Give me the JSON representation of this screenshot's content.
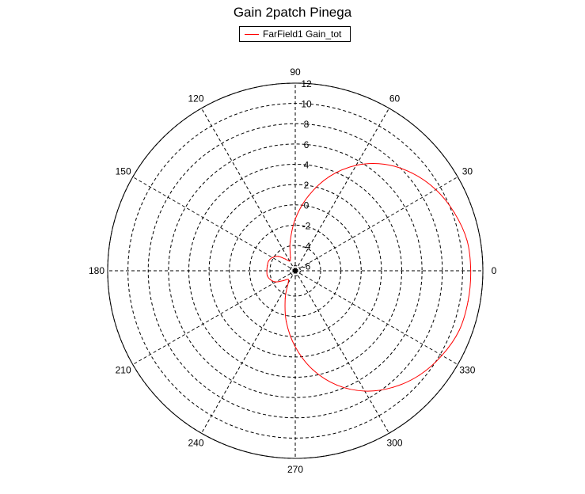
{
  "chart_data": {
    "type": "polar",
    "title": "Gain 2patch Pinega",
    "legend": {
      "placement": "top-center",
      "entries": [
        "FarField1 Gain_tot"
      ]
    },
    "angle_ticks": [
      "0",
      "30",
      "60",
      "90",
      "120",
      "150",
      "180",
      "210",
      "240",
      "270",
      "300",
      "330"
    ],
    "radial_ticks": [
      "-6",
      "-4",
      "-2",
      "0",
      "2",
      "4",
      "6",
      "8",
      "10",
      "12"
    ],
    "rlim": [
      -6.5,
      12
    ],
    "grid": true,
    "series": [
      {
        "name": "FarField1 Gain_tot",
        "color": "#ff0000",
        "angle_deg": [
          0,
          10,
          20,
          30,
          40,
          50,
          60,
          70,
          80,
          90,
          100,
          110,
          120,
          130,
          140,
          150,
          160,
          170,
          180,
          190,
          200,
          210,
          220,
          230,
          240,
          250,
          260,
          270,
          280,
          290,
          300,
          310,
          320,
          330,
          340,
          350
        ],
        "gain": [
          10.8,
          10.7,
          10.2,
          9.5,
          8.5,
          7.2,
          5.5,
          3.4,
          1.0,
          -1.4,
          -3.6,
          -5.1,
          -5.4,
          -5.0,
          -4.3,
          -3.9,
          -3.7,
          -3.7,
          -3.7,
          -3.7,
          -3.9,
          -4.3,
          -5.0,
          -5.4,
          -5.1,
          -3.6,
          -1.4,
          1.0,
          3.4,
          5.5,
          7.2,
          8.5,
          9.5,
          10.2,
          10.7,
          10.8
        ]
      }
    ]
  }
}
